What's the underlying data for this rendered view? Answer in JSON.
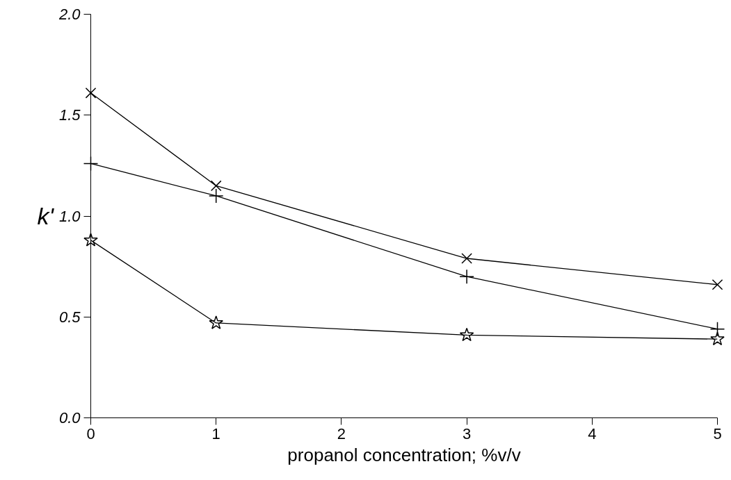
{
  "chart_data": {
    "type": "line",
    "xlabel": "propanol concentration; %v/v",
    "ylabel": "k'",
    "x": [
      0,
      1,
      3,
      5
    ],
    "series": [
      {
        "color": "#000000",
        "marker": "x",
        "values": [
          1.61,
          1.15,
          0.79,
          0.66
        ]
      },
      {
        "color": "#000000",
        "marker": "cross",
        "values": [
          1.26,
          1.1,
          0.7,
          0.44
        ]
      },
      {
        "color": "#000000",
        "marker": "star",
        "values": [
          0.88,
          0.47,
          0.41,
          0.39
        ]
      }
    ],
    "xlim": [
      0,
      5
    ],
    "ylim": [
      0,
      2
    ],
    "xticks": [
      0,
      1,
      2,
      3,
      4,
      5
    ],
    "yticks": [
      {
        "value": 0,
        "label": "0.0"
      },
      {
        "value": 0.5,
        "label": "0.5"
      },
      {
        "value": 1,
        "label": "1.0"
      },
      {
        "value": 1.5,
        "label": "1.5"
      },
      {
        "value": 2,
        "label": "2.0"
      }
    ],
    "grid": false,
    "line_style": "solid"
  }
}
